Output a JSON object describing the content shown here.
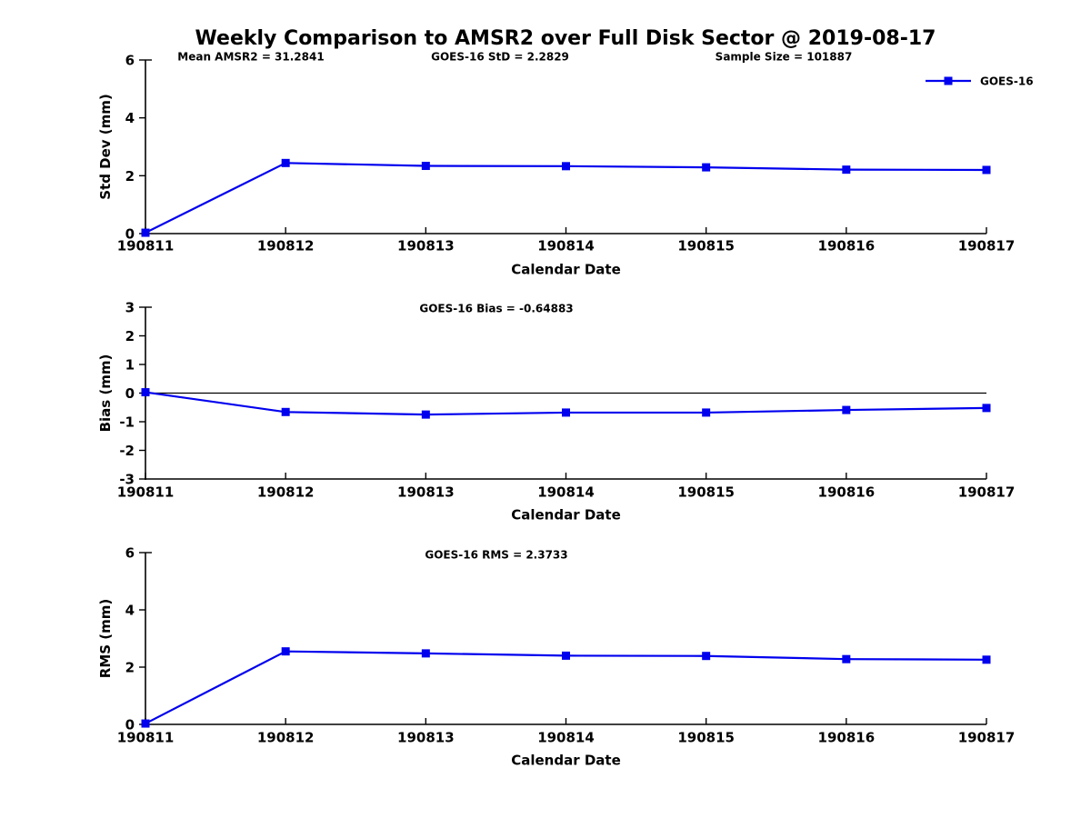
{
  "figure": {
    "title": "Weekly Comparison to AMSR2 over Full Disk Sector @ 2019-08-17",
    "background_color": "#ffffff",
    "line_color": "#0000ee",
    "axis_color": "#000000"
  },
  "chart_data": [
    {
      "type": "line",
      "name": "std-dev",
      "categories": [
        "190811",
        "190812",
        "190813",
        "190814",
        "190815",
        "190816",
        "190817"
      ],
      "series": [
        {
          "name": "GOES-16",
          "values": [
            0.03,
            2.44,
            2.34,
            2.33,
            2.29,
            2.21,
            2.2
          ]
        }
      ],
      "ylabel": "Std Dev (mm)",
      "xlabel": "Calendar Date",
      "ylim": [
        0,
        6
      ],
      "yticks": [
        0,
        2,
        4,
        6
      ],
      "grid": false,
      "legend": {
        "show": true,
        "position": "top-right",
        "label": "GOES-16"
      },
      "annotations": [
        {
          "text": "Mean AMSR2 = 31.2841"
        },
        {
          "text": "GOES-16 StD = 2.2829"
        },
        {
          "text": "Sample Size = 101887"
        }
      ]
    },
    {
      "type": "line",
      "name": "bias",
      "categories": [
        "190811",
        "190812",
        "190813",
        "190814",
        "190815",
        "190816",
        "190817"
      ],
      "series": [
        {
          "name": "GOES-16",
          "values": [
            0.03,
            -0.66,
            -0.75,
            -0.68,
            -0.68,
            -0.59,
            -0.52
          ]
        }
      ],
      "ylabel": "Bias (mm)",
      "xlabel": "Calendar Date",
      "ylim": [
        -3,
        3
      ],
      "yticks": [
        -3,
        -2,
        -1,
        0,
        1,
        2,
        3
      ],
      "zero_line": true,
      "grid": false,
      "legend": {
        "show": false
      },
      "annotations": [
        {
          "text": "GOES-16 Bias  = -0.64883"
        }
      ]
    },
    {
      "type": "line",
      "name": "rms",
      "categories": [
        "190811",
        "190812",
        "190813",
        "190814",
        "190815",
        "190816",
        "190817"
      ],
      "series": [
        {
          "name": "GOES-16",
          "values": [
            0.03,
            2.55,
            2.48,
            2.4,
            2.39,
            2.28,
            2.26
          ]
        }
      ],
      "ylabel": "RMS (mm)",
      "xlabel": "Calendar Date",
      "ylim": [
        0,
        6
      ],
      "yticks": [
        0,
        2,
        4,
        6
      ],
      "zero_line": false,
      "grid": false,
      "legend": {
        "show": false
      },
      "annotations": [
        {
          "text": "GOES-16 RMS = 2.3733"
        }
      ]
    }
  ]
}
